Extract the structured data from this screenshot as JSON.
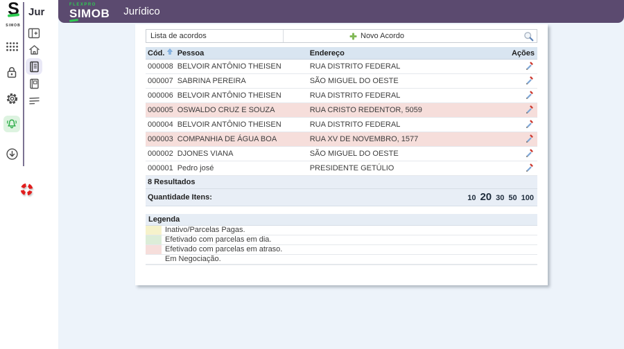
{
  "colors": {
    "purple": "#5b4a6f",
    "green": "#2ecc52",
    "highlight_pink": "#f6dedb",
    "table_header_bg": "#d9e5f1",
    "page_bg": "#edf3fa"
  },
  "sidebar": {
    "logo_letter": "S",
    "logo_caption": "SIMOB",
    "module_label": "Jur",
    "primary_icons": [
      "apps-grid-icon",
      "lock-icon",
      "gear-icon",
      "bell-icon",
      "download-icon"
    ],
    "secondary_icons": [
      "panel-icon",
      "home-icon",
      "book-icon-active",
      "book-icon",
      "list-lines-icon"
    ],
    "help_icon": "lifebuoy-icon"
  },
  "header": {
    "brand_small": "FLEXPRO",
    "brand": "SIMOB",
    "title": "Jurídico"
  },
  "toolbar": {
    "list_label": "Lista de acordos",
    "new_button": "Novo Acordo"
  },
  "table": {
    "columns": [
      "Cód.",
      "Pessoa",
      "Endereço",
      "Ações"
    ],
    "rows": [
      {
        "code": "000008",
        "person": "BELVOIR ANTÔNIO THEISEN",
        "address": "RUA DISTRITO FEDERAL",
        "highlight": false
      },
      {
        "code": "000007",
        "person": "SABRINA PEREIRA",
        "address": "SÃO MIGUEL DO OESTE",
        "highlight": false
      },
      {
        "code": "000006",
        "person": "BELVOIR ANTÔNIO THEISEN",
        "address": "RUA DISTRITO FEDERAL",
        "highlight": false
      },
      {
        "code": "000005",
        "person": "OSWALDO CRUZ E SOUZA",
        "address": "RUA CRISTO REDENTOR, 5059",
        "highlight": true
      },
      {
        "code": "000004",
        "person": "BELVOIR ANTÔNIO THEISEN",
        "address": "RUA DISTRITO FEDERAL",
        "highlight": false
      },
      {
        "code": "000003",
        "person": "COMPANHIA DE ÁGUA BOA",
        "address": "RUA XV DE NOVEMBRO, 1577",
        "highlight": true
      },
      {
        "code": "000002",
        "person": "DJONES VIANA",
        "address": "SÃO MIGUEL DO OESTE",
        "highlight": false
      },
      {
        "code": "000001",
        "person": "Pedro josé",
        "address": "PRESIDENTE GETÚLIO",
        "highlight": false
      }
    ],
    "results_text": "8 Resultados",
    "quantity_label": "Quantidade Itens:",
    "page_sizes": [
      "10",
      "20",
      "30",
      "50",
      "100"
    ],
    "selected_page_size": "20"
  },
  "legend": {
    "title": "Legenda",
    "items": [
      {
        "color": "#f6f2cb",
        "label": "Inativo/Parcelas Pagas."
      },
      {
        "color": "#dcedd8",
        "label": "Efetivado com parcelas em dia."
      },
      {
        "color": "#f6dedb",
        "label": "Efetivado com parcelas em atraso."
      },
      {
        "color": "#ffffff",
        "label": "Em Negociação."
      }
    ]
  }
}
